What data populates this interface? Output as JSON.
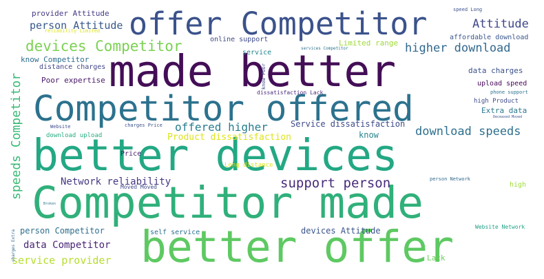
{
  "words": [
    {
      "text": "Competitor made",
      "color": "#30b07a"
    },
    {
      "text": "better devices",
      "color": "#23a884"
    },
    {
      "text": "made better",
      "color": "#440e57"
    },
    {
      "text": "better offer",
      "color": "#5ec962"
    },
    {
      "text": "Competitor offered",
      "color": "#2c728e"
    },
    {
      "text": "offer Competitor",
      "color": "#3b528b"
    },
    {
      "text": "devices Competitor",
      "color": "#7ad151"
    },
    {
      "text": "support person",
      "color": "#472a7a"
    },
    {
      "text": "speeds Competitor",
      "color": "#3aba76"
    },
    {
      "text": "higher download",
      "color": "#31688e"
    },
    {
      "text": "download speeds",
      "color": "#2d708e"
    },
    {
      "text": "offered higher",
      "color": "#287d8e"
    },
    {
      "text": "Attitude",
      "color": "#3f4788"
    },
    {
      "text": "person Attitude",
      "color": "#38588c"
    },
    {
      "text": "service provider",
      "color": "#b5de2b"
    },
    {
      "text": "data Competitor",
      "color": "#482576"
    },
    {
      "text": "Network reliability",
      "color": "#443983"
    },
    {
      "text": "Product dissatisfaction",
      "color": "#dde318"
    },
    {
      "text": "Service dissatisfaction",
      "color": "#3e4989"
    },
    {
      "text": "person Competitor",
      "color": "#2e6f8e"
    },
    {
      "text": "devices Attitude",
      "color": "#3a548c"
    },
    {
      "text": "provider Attitude",
      "color": "#443a83"
    },
    {
      "text": "Limited range",
      "color": "#a0da39"
    },
    {
      "text": "affordable download",
      "color": "#39568c"
    },
    {
      "text": "data charges",
      "color": "#3b518b"
    },
    {
      "text": "upload speed",
      "color": "#450457"
    },
    {
      "text": "Extra data",
      "color": "#2a788e"
    },
    {
      "text": "Poor expertise",
      "color": "#481668"
    },
    {
      "text": "know Competitor",
      "color": "#2e6e8e"
    },
    {
      "text": "know",
      "color": "#25848e"
    },
    {
      "text": "self service",
      "color": "#2d708e"
    },
    {
      "text": "Lack",
      "color": "#6ccd5a"
    },
    {
      "text": "high Product",
      "color": "#3e4c8a"
    },
    {
      "text": "online support",
      "color": "#3e4a89"
    },
    {
      "text": "service",
      "color": "#25838e"
    },
    {
      "text": "download upload",
      "color": "#27ad81"
    },
    {
      "text": "distance charges",
      "color": "#404688"
    },
    {
      "text": "Price",
      "color": "#481c6e"
    },
    {
      "text": "high",
      "color": "#9fda3a"
    },
    {
      "text": "Long distance",
      "color": "#dae319"
    },
    {
      "text": "dissatisfaction Lack",
      "color": "#4b2b7c"
    },
    {
      "text": "Moved Moved",
      "color": "#3f4889"
    },
    {
      "text": "Website Network",
      "color": "#1fa187"
    },
    {
      "text": "know Poor",
      "color": "#3f4788"
    },
    {
      "text": "charges Price",
      "color": "#3b528b"
    },
    {
      "text": "Website",
      "color": "#3e4a89"
    },
    {
      "text": "phone support",
      "color": "#2c728e"
    },
    {
      "text": "speed Long",
      "color": "#3b528b"
    },
    {
      "text": "person Network",
      "color": "#31688e"
    },
    {
      "text": "reliability Limited",
      "color": "#dde318"
    },
    {
      "text": "services Competitor",
      "color": "#2c728e"
    },
    {
      "text": "Deceased Moved",
      "color": "#3b528b"
    },
    {
      "text": "charges Extra",
      "color": "#31688e"
    },
    {
      "text": "Broken",
      "color": "#2a788e"
    }
  ]
}
